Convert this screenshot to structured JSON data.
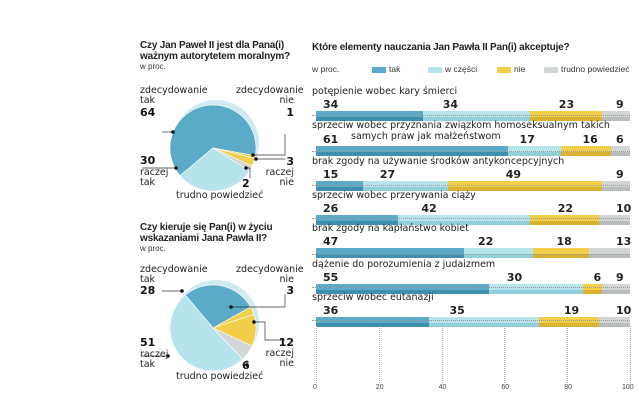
{
  "colors": {
    "tak": "#5aaac8",
    "w_czesci": "#b6e3ec",
    "nie": "#f2cf4a",
    "trudno": "#d3d6d6",
    "tak_dark": "#3f8fae",
    "w_czesci_dark": "#93cfdb",
    "nie_dark": "#d9b232",
    "trudno_dark": "#b9bdbd"
  },
  "chart_data": [
    {
      "type": "pie",
      "title": "Czy Jan Paweł II  jest dla Pana(i) ważnym autorytetem moralnym?",
      "unit": "w proc.",
      "slices": [
        {
          "label": "zdecydowanie tak",
          "value": 64
        },
        {
          "label": "zdecydowanie nie",
          "value": 1
        },
        {
          "label": "raczej nie",
          "value": 3
        },
        {
          "label": "trudno powiedzieć",
          "value": 2
        },
        {
          "label": "raczej tak",
          "value": 30
        }
      ]
    },
    {
      "type": "pie",
      "title": "Czy kieruje się Pan(i) w życiu wskazaniami Jana Pawła II?",
      "unit": "w proc.",
      "slices": [
        {
          "label": "zdecydowanie tak",
          "value": 28
        },
        {
          "label": "zdecydowanie nie",
          "value": 3
        },
        {
          "label": "raczej nie",
          "value": 12
        },
        {
          "label": "trudno powiedzieć",
          "value": 6
        },
        {
          "label": "raczej tak",
          "value": 51
        }
      ]
    },
    {
      "type": "bar",
      "orientation": "horizontal",
      "stacked": true,
      "title": "Które elementy nauczania Jan Pawła II Pan(i) akceptuje?",
      "unit": "w proc.",
      "series_names": [
        "tak",
        "w części",
        "nie",
        "trudno powiedzieć"
      ],
      "xlim": [
        0,
        100
      ],
      "xticks": [
        "0",
        "20",
        "40",
        "60",
        "80",
        "100"
      ],
      "categories": [
        "potępienie wobec kary śmierci",
        "sprzeciw wobec przyznania związkom homoseksualnym takich samych praw jak małżeństwom",
        "brak zgody na używanie środków antykoncepcyjnych",
        "sprzeciw wobec przerywania ciąży",
        "brak zgody na kapłaństwo kobiet",
        "dążenie do porozumienia z judaizmem",
        "sprzeciw wobec eutanazji"
      ],
      "rows": [
        [
          34,
          34,
          23,
          9
        ],
        [
          61,
          17,
          16,
          6
        ],
        [
          15,
          27,
          49,
          9
        ],
        [
          26,
          42,
          22,
          10
        ],
        [
          47,
          22,
          18,
          13
        ],
        [
          55,
          30,
          6,
          9
        ],
        [
          36,
          35,
          19,
          10
        ]
      ]
    }
  ]
}
